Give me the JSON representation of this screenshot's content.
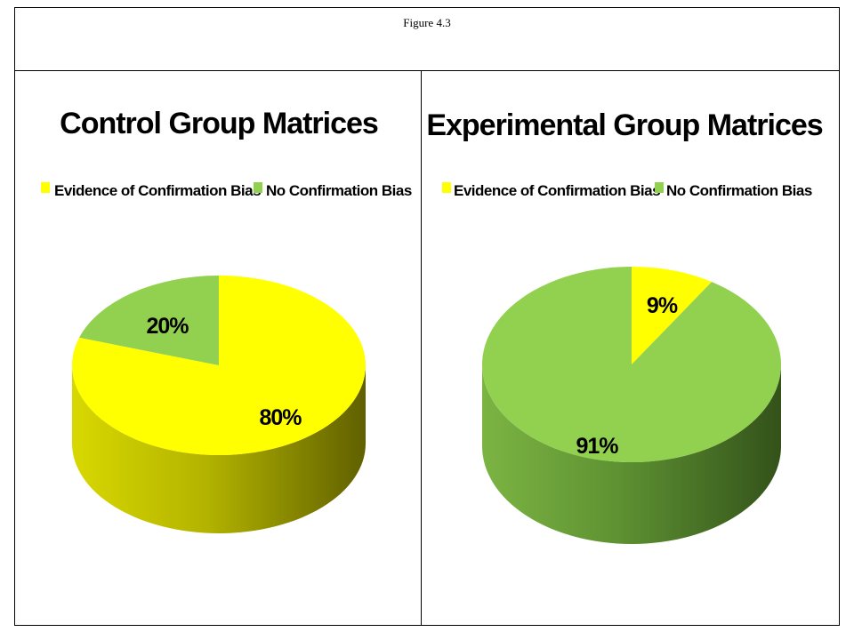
{
  "figure": {
    "caption": "Figure 4.3"
  },
  "colors": {
    "evidence": "#ffff00",
    "evidence_side_light": "#c8c800",
    "evidence_side_dark": "#6e6e00",
    "no_bias": "#92d050",
    "no_bias_side_light": "#6ea43a",
    "no_bias_side_dark": "#3a5a1e"
  },
  "chart_data": [
    {
      "type": "pie",
      "title": "Control Group Matrices",
      "categories": [
        "Evidence of Confirmation Bias",
        "No Confirmation Bias"
      ],
      "values": [
        80,
        20
      ],
      "data_labels": [
        "80%",
        "20%"
      ],
      "legend": [
        "Evidence of Confirmation Bias",
        "No Confirmation Bias"
      ],
      "legend_position": "top",
      "style": "3d"
    },
    {
      "type": "pie",
      "title": "Experimental Group Matrices",
      "categories": [
        "Evidence of Confirmation Bias",
        "No Confirmation Bias"
      ],
      "values": [
        9,
        91
      ],
      "data_labels": [
        "9%",
        "91%"
      ],
      "legend": [
        "Evidence of Confirmation Bias",
        "No Confirmation Bias"
      ],
      "legend_position": "top",
      "style": "3d"
    }
  ]
}
